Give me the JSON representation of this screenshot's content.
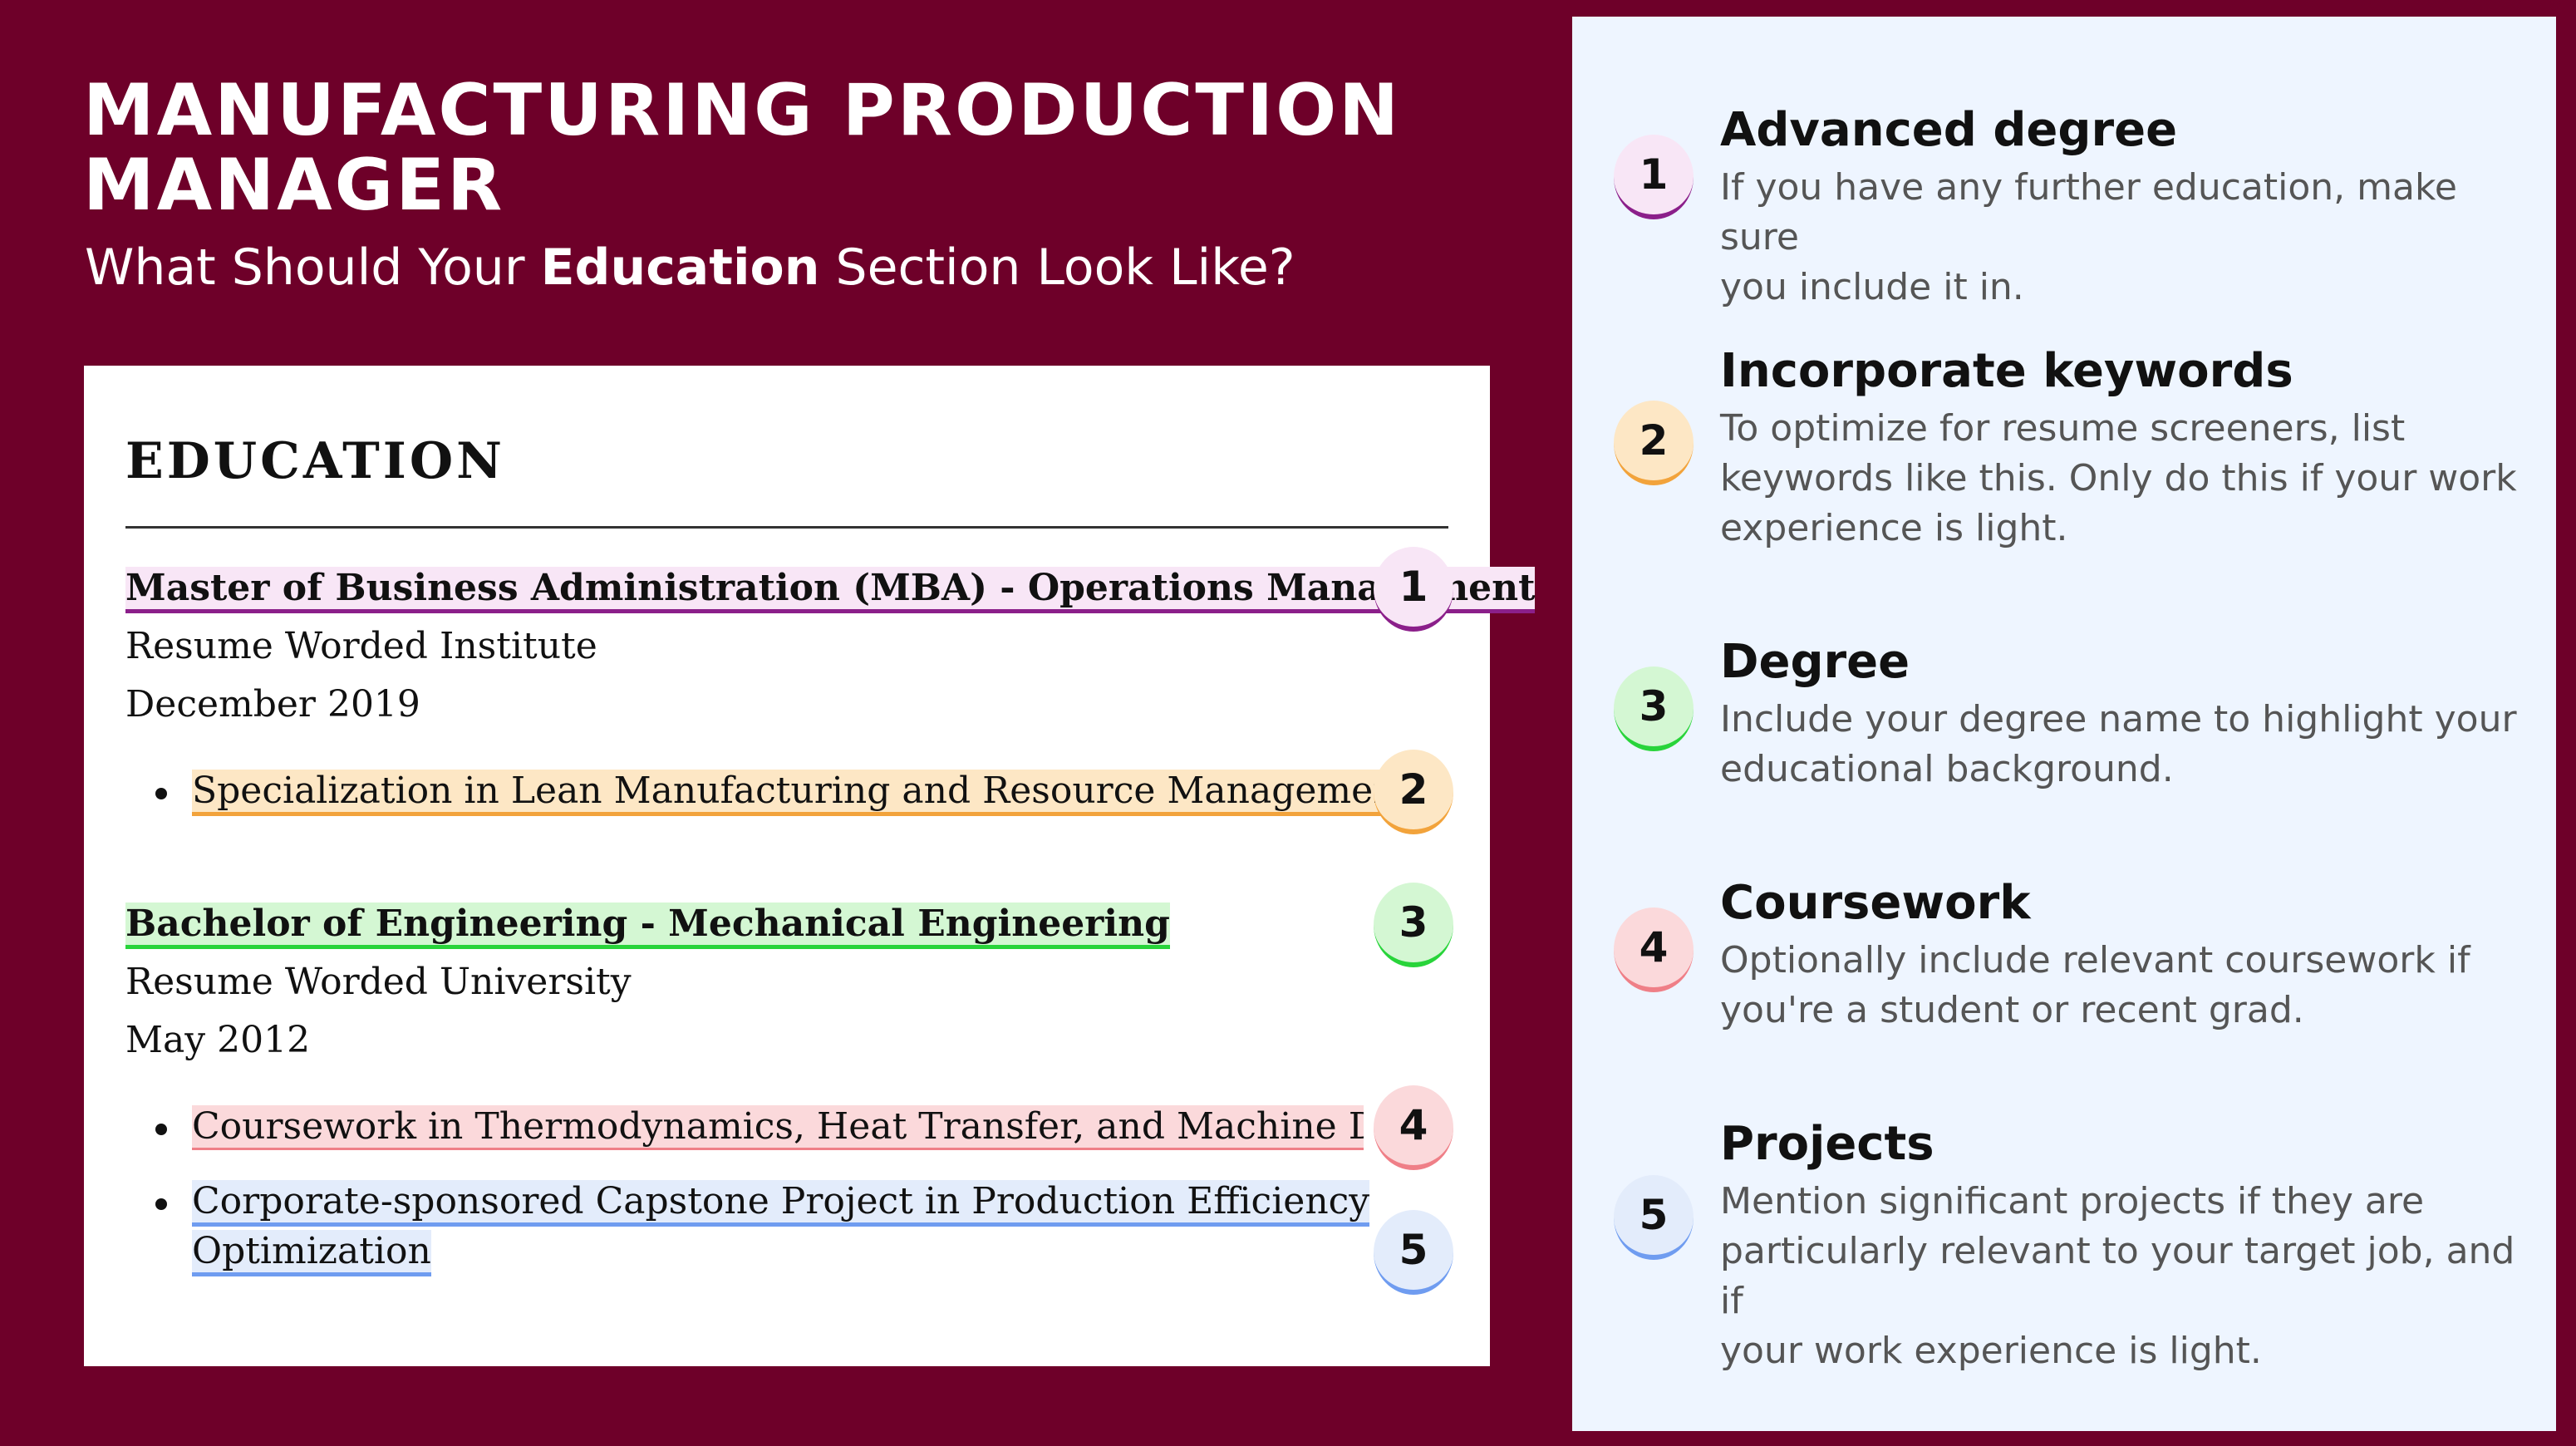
{
  "header": {
    "title": "MANUFACTURING PRODUCTION MANAGER",
    "subtitle_pre": "What Should Your ",
    "subtitle_bold": "Education",
    "subtitle_post": " Section Look Like?"
  },
  "resume": {
    "heading": "EDUCATION",
    "entries": [
      {
        "degree": "Master of Business Administration (MBA) - Operations Management",
        "school": "Resume Worded Institute",
        "date": "December 2019",
        "bullets": [
          "Specialization in Lean Manufacturing and Resource Management"
        ]
      },
      {
        "degree": "Bachelor of Engineering - Mechanical Engineering",
        "school": "Resume Worded University",
        "date": "May 2012",
        "bullets": [
          "Coursework in Thermodynamics, Heat Transfer, and Machine Desig",
          "Corporate-sponsored Capstone Project in Production Efficiency",
          "Optimization"
        ]
      }
    ],
    "markers": [
      "1",
      "2",
      "3",
      "4",
      "5"
    ]
  },
  "tips": [
    {
      "num": "1",
      "title": "Advanced degree",
      "text": [
        "If you have any further education, make sure",
        "you include it in."
      ]
    },
    {
      "num": "2",
      "title": "Incorporate keywords",
      "text": [
        "To optimize for resume screeners, list",
        "keywords like this. Only do this if your work",
        "experience is light."
      ]
    },
    {
      "num": "3",
      "title": "Degree",
      "text": [
        "Include your degree name to highlight your",
        "educational background."
      ]
    },
    {
      "num": "4",
      "title": "Coursework",
      "text": [
        "Optionally include relevant coursework if",
        "you're a student or recent grad."
      ]
    },
    {
      "num": "5",
      "title": "Projects",
      "text": [
        "Mention significant projects if they are",
        "particularly relevant to your target job, and if",
        "your work experience is light."
      ]
    }
  ],
  "colors": {
    "background": "#6e0029",
    "panel": "#eef5ff",
    "marker1": "#8b1f8a",
    "marker2": "#f2a33b",
    "marker3": "#28d43a",
    "marker4": "#ef7f87",
    "marker5": "#6f9cf0"
  }
}
